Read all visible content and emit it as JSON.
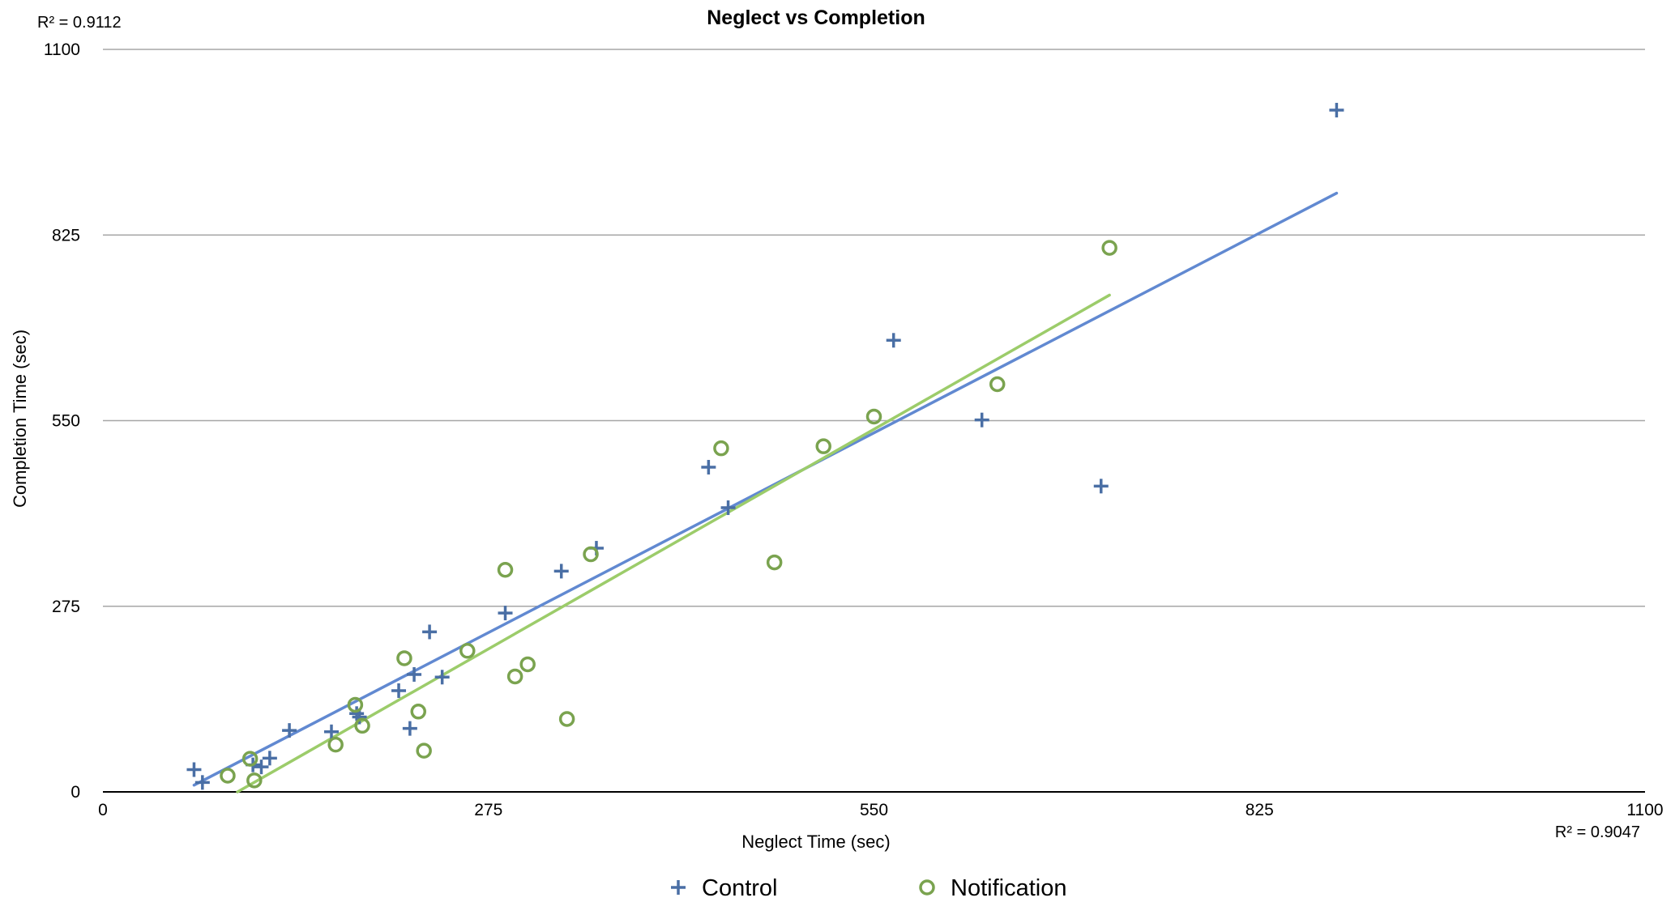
{
  "chart_data": {
    "type": "scatter",
    "title": "Neglect vs Completion",
    "xlabel": "Neglect Time (sec)",
    "ylabel": "Completion Time (sec)",
    "xlim": [
      0,
      1100
    ],
    "ylim": [
      0,
      1100
    ],
    "xticks": [
      "0",
      "275",
      "550",
      "825",
      "1100"
    ],
    "yticks": [
      "0",
      "275",
      "550",
      "825",
      "1100"
    ],
    "grid": "horizontal",
    "legend_position": "bottom",
    "r2_notification": "R² = 0.9112",
    "r2_control": "R² = 0.9047",
    "series": [
      {
        "name": "Control",
        "marker": "plus",
        "color": "#4a6fa5",
        "trend_color": "#6189d1",
        "points": [
          [
            65,
            33
          ],
          [
            71,
            14
          ],
          [
            107,
            40
          ],
          [
            113,
            37
          ],
          [
            119,
            50
          ],
          [
            133,
            91
          ],
          [
            163,
            89
          ],
          [
            181,
            116
          ],
          [
            183,
            111
          ],
          [
            211,
            150
          ],
          [
            219,
            94
          ],
          [
            222,
            174
          ],
          [
            233,
            237
          ],
          [
            242,
            170
          ],
          [
            287,
            265
          ],
          [
            327,
            327
          ],
          [
            352,
            361
          ],
          [
            432,
            481
          ],
          [
            446,
            421
          ],
          [
            564,
            669
          ],
          [
            627,
            551
          ],
          [
            712,
            453
          ],
          [
            880,
            1010
          ]
        ],
        "trend": [
          [
            65,
            10
          ],
          [
            880,
            887
          ]
        ]
      },
      {
        "name": "Notification",
        "marker": "circle",
        "color": "#7aa34f",
        "trend_color": "#9ccc6a",
        "points": [
          [
            89,
            24
          ],
          [
            105,
            49
          ],
          [
            108,
            17
          ],
          [
            166,
            70
          ],
          [
            180,
            129
          ],
          [
            185,
            98
          ],
          [
            215,
            198
          ],
          [
            225,
            119
          ],
          [
            229,
            61
          ],
          [
            260,
            209
          ],
          [
            287,
            329
          ],
          [
            294,
            171
          ],
          [
            303,
            189
          ],
          [
            331,
            108
          ],
          [
            348,
            352
          ],
          [
            441,
            509
          ],
          [
            479,
            340
          ],
          [
            514,
            512
          ],
          [
            550,
            556
          ],
          [
            638,
            604
          ],
          [
            718,
            806
          ]
        ],
        "trend": [
          [
            96,
            0
          ],
          [
            718,
            736
          ]
        ]
      }
    ]
  }
}
